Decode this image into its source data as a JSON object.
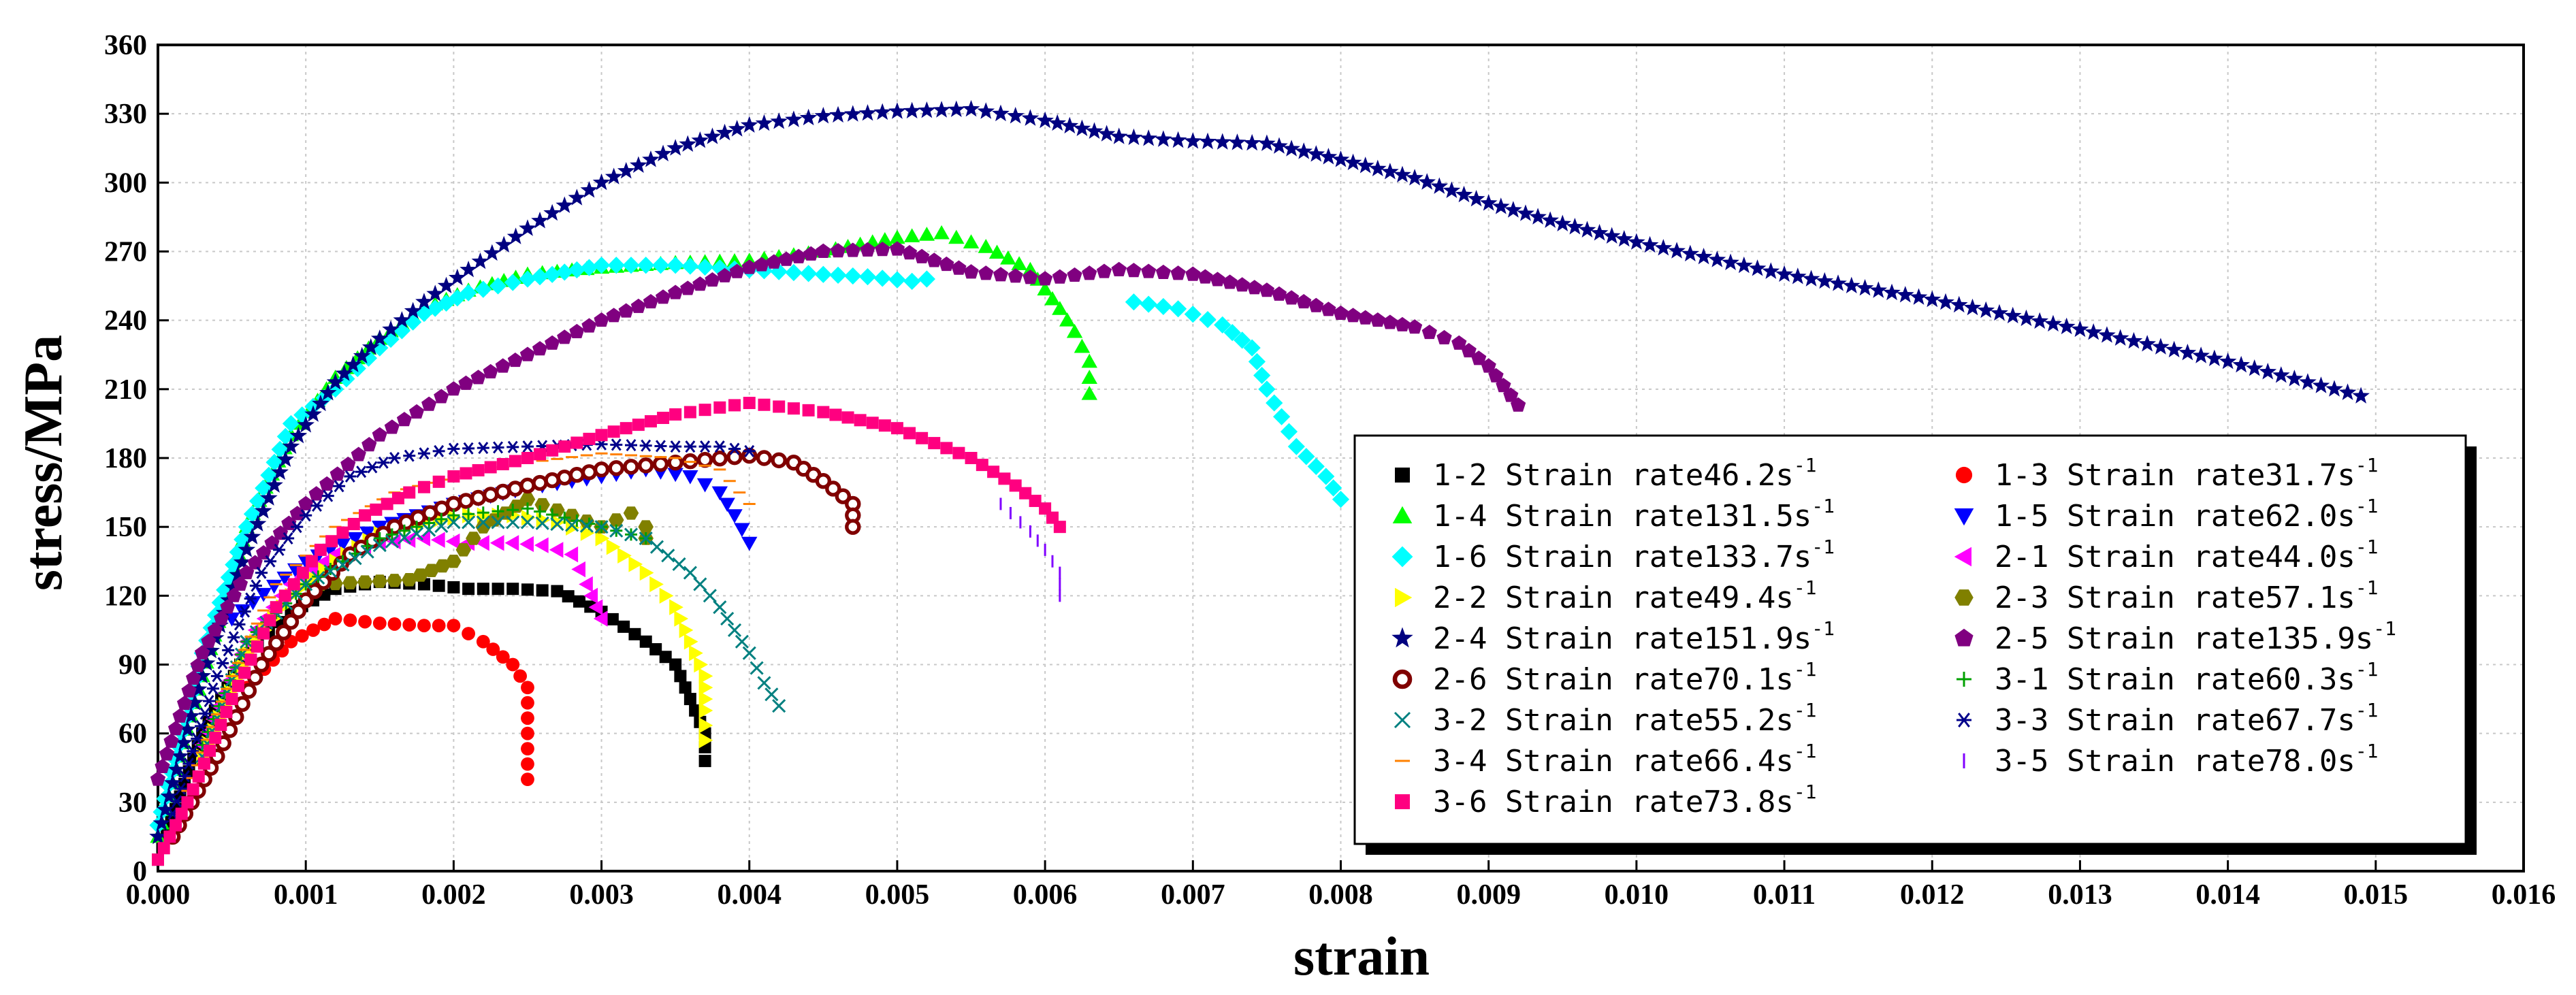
{
  "chart_data": {
    "type": "scatter",
    "title": "",
    "xlabel": "strain",
    "ylabel": "stress/MPa",
    "xlim": [
      0,
      0.016
    ],
    "ylim": [
      0,
      360
    ],
    "xticks": [
      "0.000",
      "0.001",
      "0.002",
      "0.003",
      "0.004",
      "0.005",
      "0.006",
      "0.007",
      "0.008",
      "0.009",
      "0.010",
      "0.011",
      "0.012",
      "0.013",
      "0.014",
      "0.015",
      "0.016"
    ],
    "yticks": [
      "0",
      "30",
      "60",
      "90",
      "120",
      "150",
      "180",
      "210",
      "240",
      "270",
      "300",
      "330",
      "360"
    ],
    "grid": true,
    "legend_position": "lower-right",
    "series": [
      {
        "name": "1-2",
        "label": "1-2 Strain rate46.2s",
        "rate_exp": "-1",
        "color": "#000000",
        "marker": "square",
        "points": [
          [
            0,
            5
          ],
          [
            0.0003,
            60
          ],
          [
            0.0006,
            95
          ],
          [
            0.0009,
            113
          ],
          [
            0.0012,
            123
          ],
          [
            0.0015,
            126
          ],
          [
            0.0018,
            125
          ],
          [
            0.0021,
            123
          ],
          [
            0.0024,
            123
          ],
          [
            0.0027,
            122
          ],
          [
            0.003,
            113
          ],
          [
            0.0033,
            100
          ],
          [
            0.0035,
            90
          ],
          [
            0.0036,
            75
          ],
          [
            0.0037,
            60
          ],
          [
            0.0037,
            48
          ]
        ]
      },
      {
        "name": "1-3",
        "label": "1-3 Strain rate31.7s",
        "rate_exp": "-1",
        "color": "#ff0000",
        "marker": "circle",
        "points": [
          [
            0.0006,
            80
          ],
          [
            0.0009,
            100
          ],
          [
            0.0012,
            110
          ],
          [
            0.0015,
            108
          ],
          [
            0.0018,
            107
          ],
          [
            0.002,
            107
          ],
          [
            0.0022,
            100
          ],
          [
            0.0024,
            90
          ],
          [
            0.0025,
            80
          ],
          [
            0.0025,
            60
          ],
          [
            0.0025,
            40
          ]
        ]
      },
      {
        "name": "1-4",
        "label": "1-4 Strain rate131.5s",
        "rate_exp": "-1",
        "color": "#00ff00",
        "marker": "triangle-up",
        "points": [
          [
            0,
            15
          ],
          [
            0.0003,
            85
          ],
          [
            0.0006,
            150
          ],
          [
            0.0009,
            190
          ],
          [
            0.0012,
            215
          ],
          [
            0.0015,
            232
          ],
          [
            0.0018,
            245
          ],
          [
            0.0021,
            253
          ],
          [
            0.0025,
            260
          ],
          [
            0.003,
            263
          ],
          [
            0.0035,
            265
          ],
          [
            0.004,
            266
          ],
          [
            0.0045,
            270
          ],
          [
            0.005,
            276
          ],
          [
            0.0053,
            278
          ],
          [
            0.0056,
            272
          ],
          [
            0.0059,
            262
          ],
          [
            0.0061,
            245
          ],
          [
            0.0062,
            235
          ],
          [
            0.0063,
            222
          ],
          [
            0.0063,
            208
          ]
        ]
      },
      {
        "name": "1-5",
        "label": "1-5 Strain rate62.0s",
        "rate_exp": "-1",
        "color": "#0000ff",
        "marker": "triangle-down",
        "points": [
          [
            0.0005,
            110
          ],
          [
            0.001,
            135
          ],
          [
            0.0015,
            150
          ],
          [
            0.002,
            160
          ],
          [
            0.0025,
            167
          ],
          [
            0.003,
            172
          ],
          [
            0.0033,
            175
          ],
          [
            0.0036,
            172
          ],
          [
            0.0038,
            165
          ],
          [
            0.0039,
            155
          ],
          [
            0.004,
            143
          ]
        ]
      },
      {
        "name": "1-6",
        "label": "1-6 Strain rate133.7s",
        "rate_exp": "-1",
        "color": "#00ffff",
        "marker": "diamond",
        "points": [
          [
            0,
            20
          ],
          [
            0.0003,
            95
          ],
          [
            0.0006,
            150
          ],
          [
            0.0009,
            195
          ],
          [
            0.0012,
            210
          ],
          [
            0.0015,
            228
          ],
          [
            0.0018,
            243
          ],
          [
            0.0021,
            252
          ],
          [
            0.0025,
            258
          ],
          [
            0.003,
            264
          ],
          [
            0.0035,
            264
          ],
          [
            0.004,
            262
          ],
          [
            0.0045,
            260
          ],
          [
            0.0048,
            259
          ],
          [
            0.0051,
            257
          ],
          [
            0.0052,
            258
          ]
        ]
      },
      {
        "name": "1-6b",
        "label": "",
        "rate_exp": "",
        "color": "#00ffff",
        "marker": "diamond",
        "points": [
          [
            0.0066,
            248
          ],
          [
            0.0069,
            245
          ],
          [
            0.0072,
            238
          ],
          [
            0.0074,
            228
          ],
          [
            0.0075,
            210
          ],
          [
            0.0076,
            198
          ],
          [
            0.0077,
            185
          ],
          [
            0.0079,
            172
          ],
          [
            0.008,
            162
          ]
        ]
      },
      {
        "name": "2-1",
        "label": "2-1 Strain rate44.0s",
        "rate_exp": "-1",
        "color": "#ff00ff",
        "marker": "triangle-left",
        "points": [
          [
            0.0003,
            55
          ],
          [
            0.0006,
            100
          ],
          [
            0.0009,
            125
          ],
          [
            0.0012,
            138
          ],
          [
            0.0015,
            143
          ],
          [
            0.0018,
            145
          ],
          [
            0.0021,
            143
          ],
          [
            0.0024,
            143
          ],
          [
            0.0026,
            142
          ],
          [
            0.0028,
            138
          ],
          [
            0.0029,
            125
          ],
          [
            0.003,
            110
          ]
        ]
      },
      {
        "name": "2-2",
        "label": "2-2 Strain rate49.4s",
        "rate_exp": "-1",
        "color": "#ffff00",
        "marker": "triangle-right",
        "points": [
          [
            0.0003,
            50
          ],
          [
            0.0006,
            95
          ],
          [
            0.0009,
            120
          ],
          [
            0.0012,
            135
          ],
          [
            0.0015,
            147
          ],
          [
            0.0018,
            152
          ],
          [
            0.0021,
            155
          ],
          [
            0.0024,
            155
          ],
          [
            0.0027,
            152
          ],
          [
            0.003,
            145
          ],
          [
            0.0033,
            130
          ],
          [
            0.0035,
            115
          ],
          [
            0.0036,
            100
          ],
          [
            0.0037,
            85
          ],
          [
            0.0037,
            70
          ],
          [
            0.0037,
            57
          ]
        ]
      },
      {
        "name": "2-3",
        "label": "2-3 Strain rate57.1s",
        "rate_exp": "-1",
        "color": "#808000",
        "marker": "hexagon",
        "points": [
          [
            0.0011,
            125
          ],
          [
            0.0014,
            126
          ],
          [
            0.0017,
            127
          ],
          [
            0.002,
            135
          ],
          [
            0.0022,
            150
          ],
          [
            0.0025,
            162
          ],
          [
            0.0028,
            155
          ],
          [
            0.003,
            150
          ],
          [
            0.0032,
            156
          ],
          [
            0.0033,
            150
          ],
          [
            0.0033,
            145
          ]
        ]
      },
      {
        "name": "2-4",
        "label": "2-4 Strain rate151.9s",
        "rate_exp": "-1",
        "color": "#000080",
        "marker": "star",
        "points": [
          [
            0,
            15
          ],
          [
            0.0003,
            85
          ],
          [
            0.0006,
            140
          ],
          [
            0.0009,
            185
          ],
          [
            0.0012,
            213
          ],
          [
            0.0015,
            232
          ],
          [
            0.0018,
            248
          ],
          [
            0.0021,
            262
          ],
          [
            0.0025,
            280
          ],
          [
            0.003,
            300
          ],
          [
            0.0035,
            315
          ],
          [
            0.004,
            325
          ],
          [
            0.0045,
            329
          ],
          [
            0.005,
            331
          ],
          [
            0.0055,
            332
          ],
          [
            0.006,
            327
          ],
          [
            0.0065,
            320
          ],
          [
            0.007,
            318
          ],
          [
            0.0075,
            317
          ],
          [
            0.008,
            310
          ],
          [
            0.0085,
            302
          ],
          [
            0.009,
            291
          ],
          [
            0.0095,
            282
          ],
          [
            0.01,
            274
          ],
          [
            0.011,
            260
          ],
          [
            0.012,
            249
          ],
          [
            0.013,
            236
          ],
          [
            0.014,
            222
          ],
          [
            0.0149,
            207
          ]
        ]
      },
      {
        "name": "2-5",
        "label": "2-5 Strain rate135.9s",
        "rate_exp": "-1",
        "color": "#800080",
        "marker": "pentagon",
        "points": [
          [
            0,
            40
          ],
          [
            0.0003,
            95
          ],
          [
            0.0006,
            130
          ],
          [
            0.001,
            160
          ],
          [
            0.0015,
            190
          ],
          [
            0.002,
            210
          ],
          [
            0.0025,
            225
          ],
          [
            0.003,
            240
          ],
          [
            0.0035,
            252
          ],
          [
            0.004,
            263
          ],
          [
            0.0045,
            270
          ],
          [
            0.005,
            271
          ],
          [
            0.0055,
            261
          ],
          [
            0.006,
            258
          ],
          [
            0.0065,
            262
          ],
          [
            0.007,
            260
          ],
          [
            0.0075,
            253
          ],
          [
            0.008,
            243
          ],
          [
            0.0085,
            237
          ],
          [
            0.0088,
            230
          ],
          [
            0.009,
            220
          ],
          [
            0.0092,
            203
          ]
        ]
      },
      {
        "name": "2-6",
        "label": "2-6 Strain rate70.1s",
        "rate_exp": "-1",
        "color": "#800000",
        "marker": "ring",
        "points": [
          [
            0.0001,
            15
          ],
          [
            0.0004,
            50
          ],
          [
            0.0007,
            90
          ],
          [
            0.001,
            118
          ],
          [
            0.0013,
            138
          ],
          [
            0.0016,
            150
          ],
          [
            0.002,
            160
          ],
          [
            0.0025,
            168
          ],
          [
            0.003,
            175
          ],
          [
            0.0035,
            178
          ],
          [
            0.004,
            181
          ],
          [
            0.0043,
            178
          ],
          [
            0.0045,
            170
          ],
          [
            0.0047,
            160
          ],
          [
            0.0047,
            150
          ]
        ]
      },
      {
        "name": "3-1",
        "label": "3-1 Strain rate60.3s",
        "rate_exp": "-1",
        "color": "#00a000",
        "marker": "plus",
        "points": [
          [
            0.0003,
            55
          ],
          [
            0.0006,
            100
          ],
          [
            0.001,
            125
          ],
          [
            0.0015,
            145
          ],
          [
            0.002,
            155
          ],
          [
            0.0025,
            158
          ],
          [
            0.003,
            150
          ],
          [
            0.0033,
            145
          ]
        ]
      },
      {
        "name": "3-2",
        "label": "3-2 Strain rate55.2s",
        "rate_exp": "-1",
        "color": "#008080",
        "marker": "x",
        "points": [
          [
            0.0003,
            50
          ],
          [
            0.0006,
            100
          ],
          [
            0.001,
            125
          ],
          [
            0.0015,
            142
          ],
          [
            0.002,
            152
          ],
          [
            0.0025,
            152
          ],
          [
            0.003,
            150
          ],
          [
            0.0033,
            145
          ],
          [
            0.0036,
            130
          ],
          [
            0.0038,
            115
          ],
          [
            0.004,
            95
          ],
          [
            0.0041,
            82
          ],
          [
            0.0042,
            72
          ]
        ]
      },
      {
        "name": "3-3",
        "label": "3-3 Strain rate67.7s",
        "rate_exp": "-1",
        "color": "#00008b",
        "marker": "asterisk",
        "points": [
          [
            0.0001,
            25
          ],
          [
            0.0004,
            85
          ],
          [
            0.0007,
            130
          ],
          [
            0.001,
            155
          ],
          [
            0.0013,
            172
          ],
          [
            0.0016,
            180
          ],
          [
            0.002,
            184
          ],
          [
            0.0025,
            185
          ],
          [
            0.003,
            186
          ],
          [
            0.0035,
            185
          ],
          [
            0.0038,
            185
          ],
          [
            0.004,
            183
          ]
        ]
      },
      {
        "name": "3-4",
        "label": "3-4 Strain rate66.4s",
        "rate_exp": "-1",
        "color": "#ff8000",
        "marker": "dash",
        "points": [
          [
            0.0002,
            35
          ],
          [
            0.0005,
            85
          ],
          [
            0.0008,
            125
          ],
          [
            0.0012,
            150
          ],
          [
            0.0016,
            165
          ],
          [
            0.002,
            172
          ],
          [
            0.0025,
            178
          ],
          [
            0.003,
            182
          ],
          [
            0.0035,
            180
          ],
          [
            0.0038,
            175
          ],
          [
            0.004,
            160
          ]
        ]
      },
      {
        "name": "3-5",
        "label": "3-5 Strain rate78.0s",
        "rate_exp": "-1",
        "color": "#8000ff",
        "marker": "vbar",
        "points": [
          [
            0.0057,
            160
          ],
          [
            0.0059,
            148
          ],
          [
            0.006,
            140
          ],
          [
            0.0061,
            130
          ],
          [
            0.0061,
            120
          ]
        ]
      },
      {
        "name": "3-6",
        "label": "3-6 Strain rate73.8s",
        "rate_exp": "-1",
        "color": "#ff0080",
        "marker": "square",
        "points": [
          [
            0,
            5
          ],
          [
            0.0002,
            30
          ],
          [
            0.0005,
            75
          ],
          [
            0.0008,
            115
          ],
          [
            0.0011,
            140
          ],
          [
            0.0014,
            155
          ],
          [
            0.0017,
            165
          ],
          [
            0.002,
            172
          ],
          [
            0.0025,
            180
          ],
          [
            0.003,
            190
          ],
          [
            0.0035,
            199
          ],
          [
            0.004,
            204
          ],
          [
            0.0045,
            200
          ],
          [
            0.005,
            193
          ],
          [
            0.0055,
            180
          ],
          [
            0.0058,
            168
          ],
          [
            0.006,
            158
          ],
          [
            0.0061,
            150
          ]
        ]
      }
    ]
  }
}
